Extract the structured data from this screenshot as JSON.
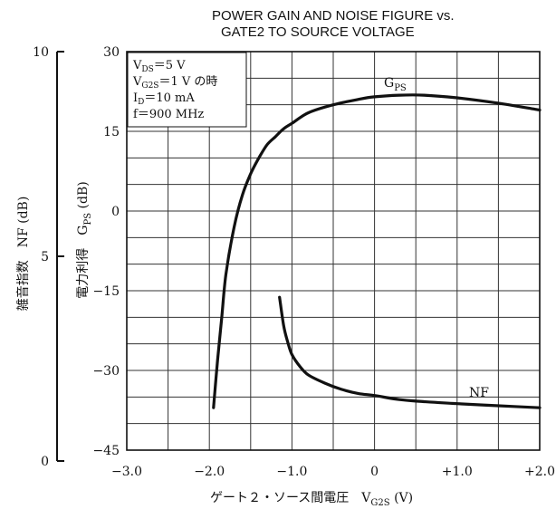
{
  "chart_data": {
    "type": "line",
    "title_lines": [
      "POWER GAIN AND NOISE FIGURE vs.",
      "GATE2 TO SOURCE VOLTAGE"
    ],
    "xlabel": "ゲート２・ソース間電圧　V G2S (V)",
    "xlabel_parts": {
      "prefix": "ゲート２・ソース間電圧　V",
      "sub": "G2S",
      "suffix": " (V)"
    },
    "ylabel_left": "雑音指数　NF (dB)",
    "ylabel_right_parts": {
      "prefix": "電力利得　G",
      "sub": "PS",
      "suffix": " (dB)"
    },
    "xlim": [
      -3.0,
      2.0
    ],
    "ylim_gain": [
      -45,
      30
    ],
    "ylim_nf": [
      0,
      10
    ],
    "x_ticks": [
      {
        "value": -3.0,
        "label": "−3.0"
      },
      {
        "value": -2.0,
        "label": "−2.0"
      },
      {
        "value": -1.0,
        "label": "−1.0"
      },
      {
        "value": 0,
        "label": "0"
      },
      {
        "value": 1.0,
        "label": "+1.0"
      },
      {
        "value": 2.0,
        "label": "+2.0"
      }
    ],
    "gain_ticks": [
      {
        "value": 30,
        "label": "30"
      },
      {
        "value": 15,
        "label": "15"
      },
      {
        "value": 0,
        "label": "0"
      },
      {
        "value": -15,
        "label": "−15"
      },
      {
        "value": -30,
        "label": "−30"
      },
      {
        "value": -45,
        "label": "−45"
      }
    ],
    "nf_ticks": [
      {
        "value": 10,
        "label": "10"
      },
      {
        "value": 5,
        "label": "5"
      },
      {
        "value": 0,
        "label": "0"
      }
    ],
    "grid": true,
    "conditions": [
      {
        "main": "V",
        "sub": "DS",
        "rest": "＝5  V"
      },
      {
        "main": "V",
        "sub": "G2S",
        "rest": "＝1  V の時"
      },
      {
        "main": "I",
        "sub": "D",
        "rest": "＝10  mA"
      },
      {
        "main": "f",
        "sub": "",
        "rest": "＝900  MHz"
      }
    ],
    "series": [
      {
        "name": "G",
        "name_sub": "PS",
        "axis": "gain",
        "x": [
          -1.95,
          -1.9,
          -1.85,
          -1.8,
          -1.7,
          -1.6,
          -1.5,
          -1.4,
          -1.3,
          -1.2,
          -1.1,
          -1.0,
          -0.8,
          -0.5,
          -0.2,
          0.0,
          0.3,
          0.6,
          1.0,
          1.5,
          2.0
        ],
        "y": [
          -37,
          -28,
          -20,
          -12,
          -3,
          3,
          7,
          10,
          12.5,
          14,
          15.5,
          16.5,
          18.5,
          20,
          21,
          21.5,
          21.8,
          21.8,
          21.3,
          20.3,
          19
        ]
      },
      {
        "name": "NF",
        "name_sub": "",
        "axis": "nf",
        "x": [
          -1.15,
          -1.1,
          -1.05,
          -1.0,
          -0.9,
          -0.8,
          -0.6,
          -0.4,
          -0.2,
          0.0,
          0.3,
          0.6,
          1.0,
          1.5,
          2.0
        ],
        "y": [
          4.0,
          3.3,
          2.9,
          2.6,
          2.3,
          2.1,
          1.9,
          1.75,
          1.65,
          1.6,
          1.5,
          1.45,
          1.4,
          1.35,
          1.3
        ]
      }
    ]
  }
}
